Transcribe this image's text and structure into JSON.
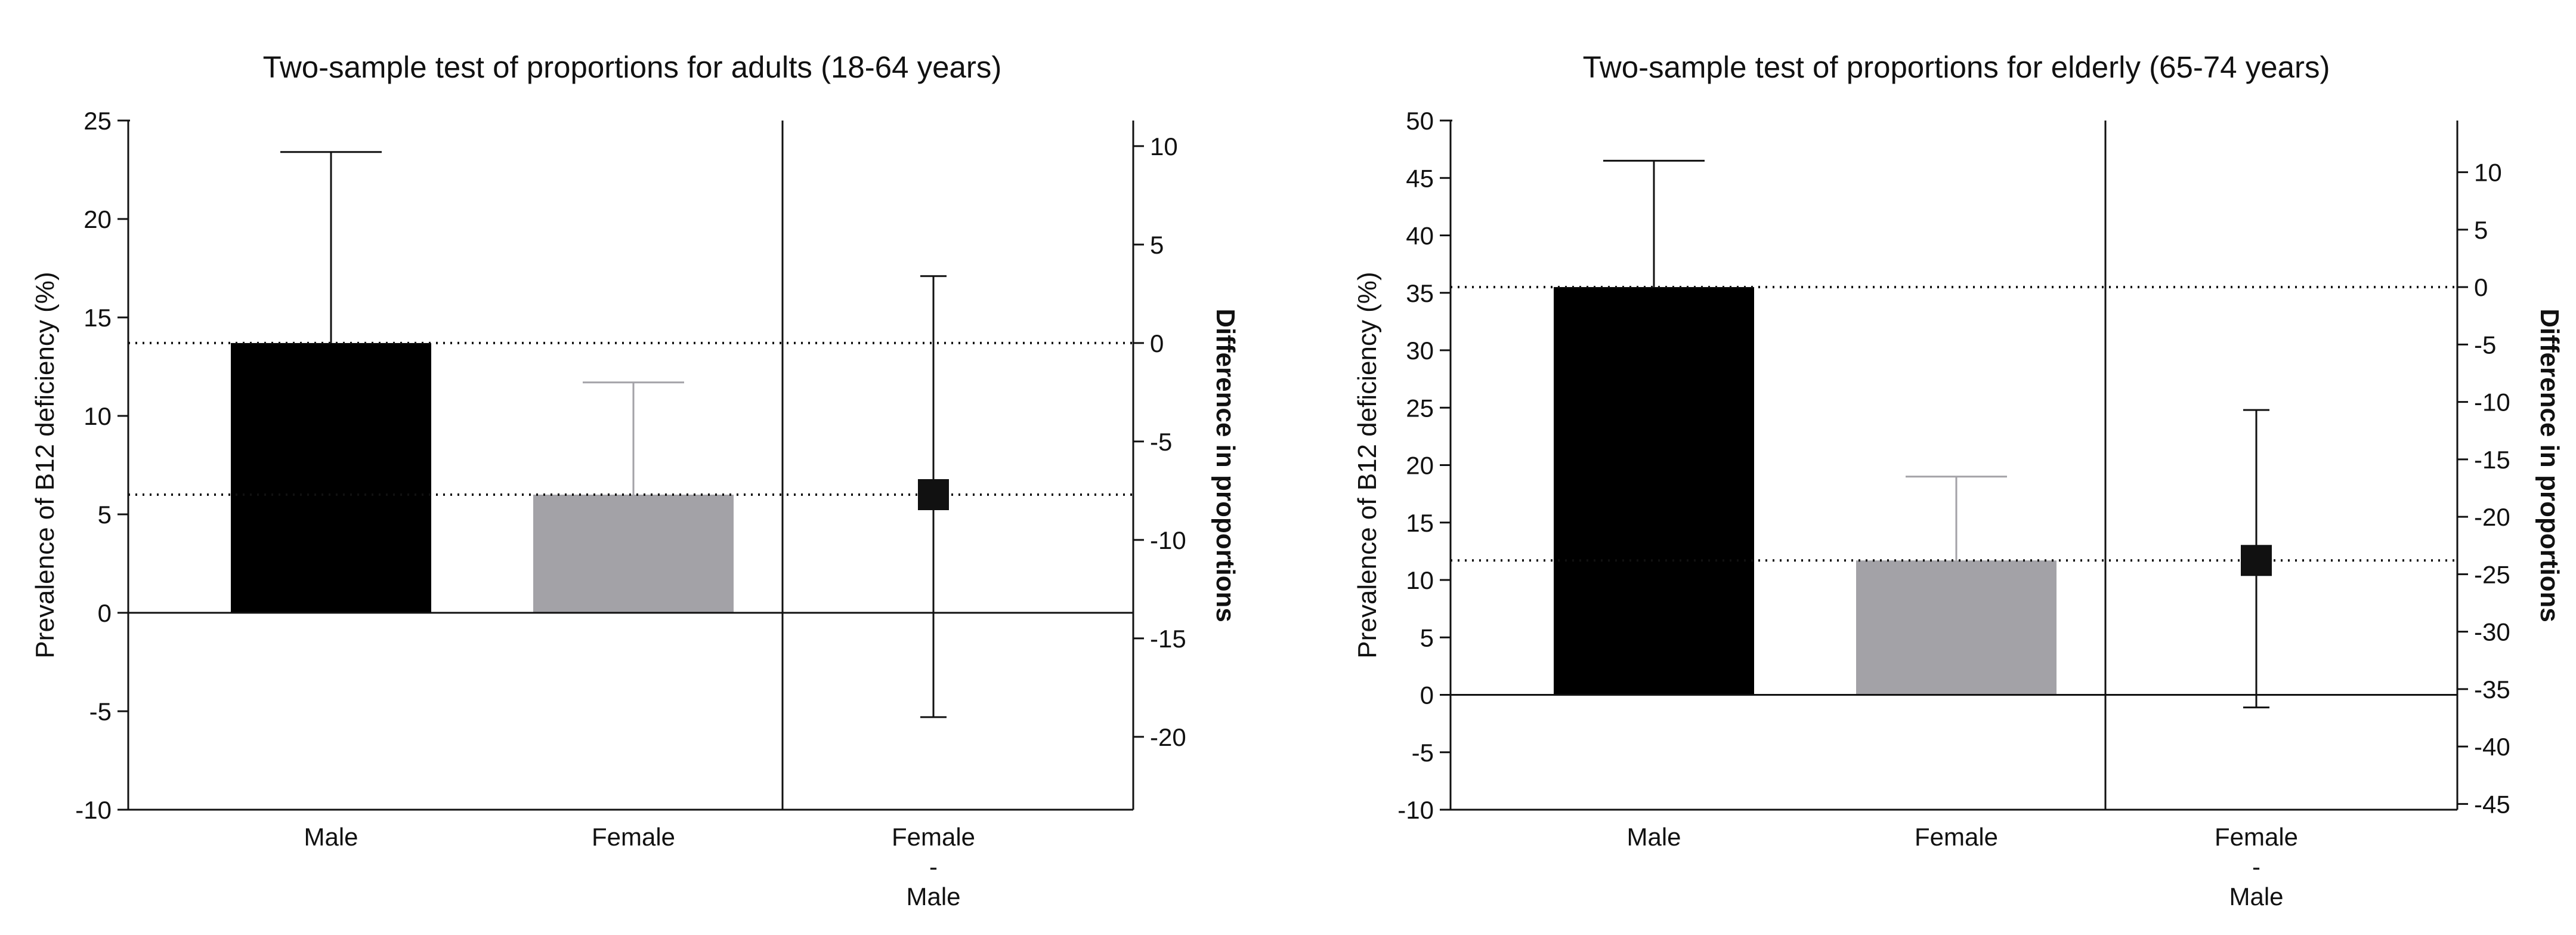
{
  "colors": {
    "male_bar": "#000000",
    "female_bar": "#a3a2a7",
    "female_whisker": "#a3a2a7",
    "axis": "#111111",
    "text": "#111111"
  },
  "chart_data": [
    {
      "type": "bar",
      "title": "Two-sample test of proportions for adults (18-64 years)",
      "ylabel": "Prevalence of B12 deficiency (%)",
      "y2label": "Difference in proportions",
      "categories": [
        "Male",
        "Female"
      ],
      "difference_label": [
        "Female",
        "-",
        "Male"
      ],
      "ylim": [
        -10,
        25
      ],
      "yticks": [
        -10,
        -5,
        0,
        5,
        10,
        15,
        20,
        25
      ],
      "y2ticks": [
        10,
        5,
        0,
        -5,
        -10,
        -15,
        -20
      ],
      "bars": [
        {
          "name": "Male",
          "value": 13.7,
          "ci_upper": 23.4
        },
        {
          "name": "Female",
          "value": 6.0,
          "ci_upper": 11.7
        }
      ],
      "difference": {
        "estimate": -7.7,
        "ci_low": -19.0,
        "ci_high": 3.4
      }
    },
    {
      "type": "bar",
      "title": "Two-sample test of proportions for elderly (65-74 years)",
      "ylabel": "Prevalence of B12 deficiency (%)",
      "y2label": "Difference in proportions",
      "categories": [
        "Male",
        "Female"
      ],
      "difference_label": [
        "Female",
        "-",
        "Male"
      ],
      "ylim": [
        -10,
        50
      ],
      "yticks": [
        -10,
        -5,
        0,
        5,
        10,
        15,
        20,
        25,
        30,
        35,
        40,
        45,
        50
      ],
      "y2ticks": [
        10,
        5,
        0,
        -5,
        -10,
        -15,
        -20,
        -25,
        -30,
        -35,
        -40,
        -45
      ],
      "bars": [
        {
          "name": "Male",
          "value": 35.5,
          "ci_upper": 46.5
        },
        {
          "name": "Female",
          "value": 11.7,
          "ci_upper": 19.0
        }
      ],
      "difference": {
        "estimate": -23.8,
        "ci_low": -36.6,
        "ci_high": -10.7
      }
    }
  ]
}
